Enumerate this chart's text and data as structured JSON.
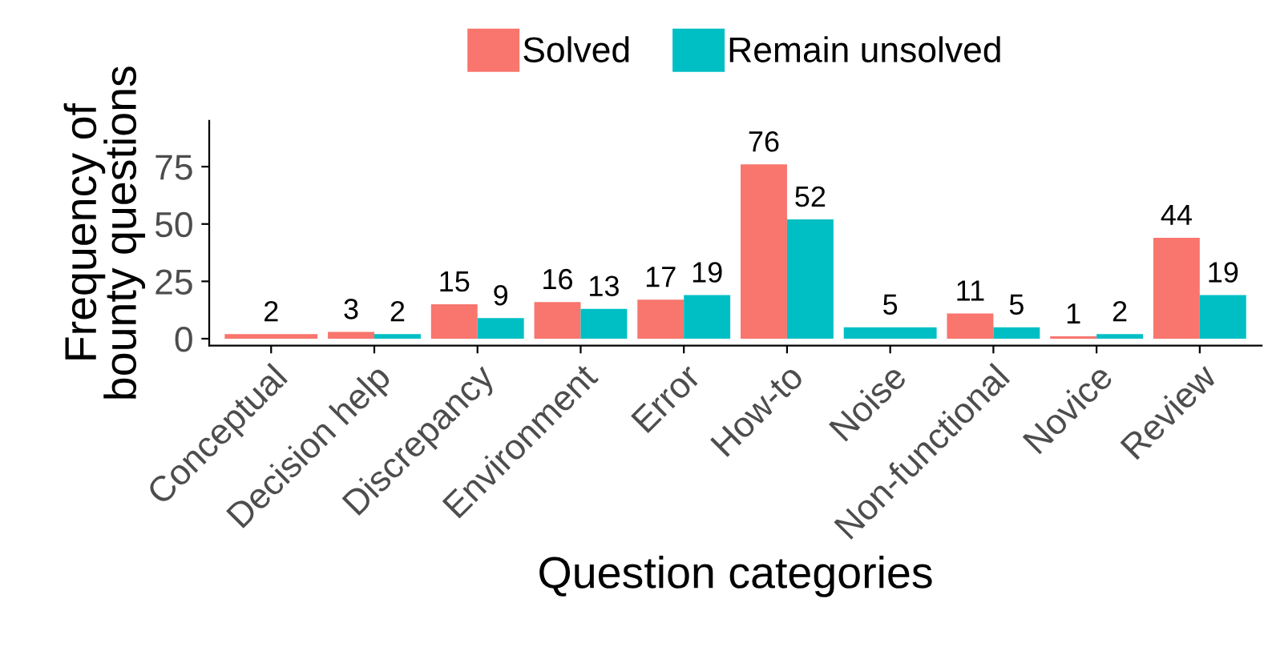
{
  "chart_data": {
    "type": "bar",
    "xlabel": "Question categories",
    "ylabel": "Frequency of\nbounty questions",
    "categories": [
      "Conceptual",
      "Decision help",
      "Discrepancy",
      "Environment",
      "Error",
      "How-to",
      "Noise",
      "Non-functional",
      "Novice",
      "Review"
    ],
    "series": [
      {
        "name": "Solved",
        "color": "#f8766d",
        "values": [
          2,
          3,
          15,
          16,
          17,
          76,
          null,
          11,
          1,
          44
        ]
      },
      {
        "name": "Remain unsolved",
        "color": "#00bfc4",
        "values": [
          null,
          2,
          9,
          13,
          19,
          52,
          5,
          5,
          2,
          19
        ]
      }
    ],
    "ylim": [
      -3,
      95
    ],
    "yticks": [
      0,
      25,
      50,
      75
    ],
    "grid": false,
    "legend": "top",
    "data_labels": true
  }
}
